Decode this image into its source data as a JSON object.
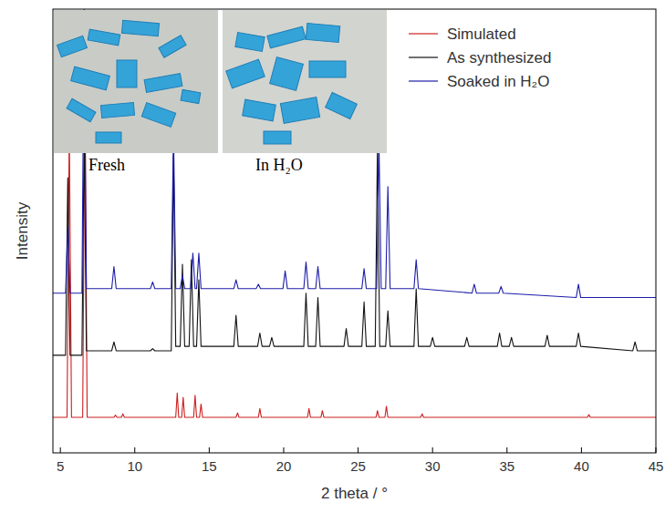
{
  "chart_data": {
    "type": "line",
    "x_label": "2 theta / °",
    "y_label": "Intensity",
    "xlim": [
      4.5,
      45
    ],
    "xticks": [
      5,
      10,
      15,
      20,
      25,
      30,
      35,
      40,
      45
    ],
    "ylim": [
      0,
      100
    ],
    "tick_labels": "x",
    "legend": "top-right",
    "annotations": [
      "Fresh",
      "In H₂O"
    ],
    "series": [
      {
        "name": "Simulated",
        "color": "#cc1f1f",
        "x": [
          4.5,
          5.45,
          5.6,
          5.75,
          6.5,
          6.65,
          6.8,
          8.6,
          8.7,
          8.8,
          9.1,
          9.2,
          9.3,
          12.75,
          12.85,
          12.95,
          13.15,
          13.25,
          13.35,
          13.95,
          14.05,
          14.15,
          14.35,
          14.45,
          14.55,
          16.8,
          16.9,
          17.0,
          18.3,
          18.4,
          18.5,
          21.6,
          21.7,
          21.8,
          22.5,
          22.6,
          22.7,
          26.2,
          26.3,
          26.4,
          26.8,
          26.9,
          27.0,
          29.2,
          29.3,
          29.4,
          40.4,
          40.5,
          40.6,
          45
        ],
        "values": [
          8,
          8,
          74,
          8,
          8,
          82,
          8,
          8,
          8.5,
          8,
          8,
          8.8,
          8,
          8,
          13.5,
          8,
          8,
          12.5,
          8,
          8,
          13,
          8,
          8,
          11,
          8,
          8,
          9,
          8,
          8,
          10,
          8,
          8,
          10,
          8,
          8,
          9.5,
          8,
          8,
          9.5,
          8,
          8,
          10.5,
          8,
          8,
          8.8,
          8,
          8,
          8.6,
          8,
          8
        ]
      },
      {
        "name": "As synthesized",
        "color": "#111111",
        "x": [
          4.5,
          5.35,
          5.5,
          5.65,
          6.45,
          6.6,
          6.75,
          8.45,
          8.6,
          8.75,
          11.05,
          11.2,
          11.35,
          12.45,
          12.6,
          12.75,
          13.05,
          13.2,
          13.35,
          13.65,
          13.8,
          13.95,
          14.15,
          14.3,
          14.45,
          16.65,
          16.8,
          16.95,
          18.25,
          18.4,
          18.55,
          19.05,
          19.2,
          19.35,
          21.35,
          21.5,
          21.65,
          22.15,
          22.3,
          22.45,
          24.05,
          24.2,
          24.35,
          25.25,
          25.4,
          25.55,
          26.15,
          26.3,
          26.45,
          26.85,
          27.0,
          27.15,
          28.75,
          28.9,
          29.05,
          29.85,
          30.0,
          30.15,
          32.15,
          32.3,
          32.45,
          34.35,
          34.5,
          34.65,
          35.15,
          35.3,
          35.45,
          37.55,
          37.7,
          37.85,
          39.65,
          39.8,
          39.95,
          43.45,
          43.6,
          43.75,
          45
        ],
        "values": [
          22,
          22,
          62,
          22,
          22,
          72,
          23,
          23,
          25,
          23,
          23,
          23.5,
          23,
          23,
          67,
          24,
          24,
          42.5,
          24,
          24,
          43.5,
          24,
          24,
          39,
          24,
          24,
          31,
          24,
          24,
          27,
          24,
          24,
          26,
          24,
          24,
          36,
          24,
          24,
          35,
          24,
          24,
          28,
          24,
          24,
          34,
          24,
          24,
          70,
          24,
          24,
          32,
          24,
          24,
          37,
          24,
          24,
          26,
          24,
          24,
          26,
          24,
          24,
          27,
          24,
          24,
          26,
          24,
          24,
          26.5,
          24,
          24,
          27,
          24,
          23,
          25,
          23,
          23
        ]
      },
      {
        "name": "Soaked in H₂O",
        "color": "#1c1ca8",
        "x": [
          4.5,
          5.35,
          5.5,
          5.65,
          6.45,
          6.6,
          6.75,
          8.45,
          8.6,
          8.75,
          11.05,
          11.2,
          11.35,
          12.45,
          12.6,
          12.75,
          13.05,
          13.2,
          13.35,
          13.75,
          13.9,
          14.05,
          14.15,
          14.3,
          14.45,
          16.65,
          16.8,
          16.95,
          18.15,
          18.3,
          18.45,
          19.95,
          20.1,
          20.25,
          21.35,
          21.5,
          21.65,
          22.15,
          22.3,
          22.45,
          25.25,
          25.4,
          25.55,
          26.25,
          26.4,
          26.55,
          26.85,
          27.0,
          27.15,
          28.75,
          28.9,
          29.05,
          32.65,
          32.8,
          32.95,
          34.45,
          34.6,
          34.75,
          39.65,
          39.8,
          39.95,
          45
        ],
        "values": [
          36,
          36,
          51,
          36,
          36,
          100,
          37,
          37,
          42,
          37,
          37,
          38.5,
          37,
          37,
          73,
          37,
          37,
          40,
          37,
          37,
          45,
          37,
          37,
          45,
          37,
          37,
          39,
          37,
          37,
          38,
          37,
          37,
          41,
          37,
          37,
          43,
          37,
          37,
          42,
          37,
          37,
          41.5,
          37,
          37,
          70,
          37,
          37,
          60,
          37,
          37,
          43.5,
          37,
          36,
          38,
          36,
          36,
          37.5,
          36,
          35,
          38,
          35,
          35
        ]
      }
    ]
  }
}
